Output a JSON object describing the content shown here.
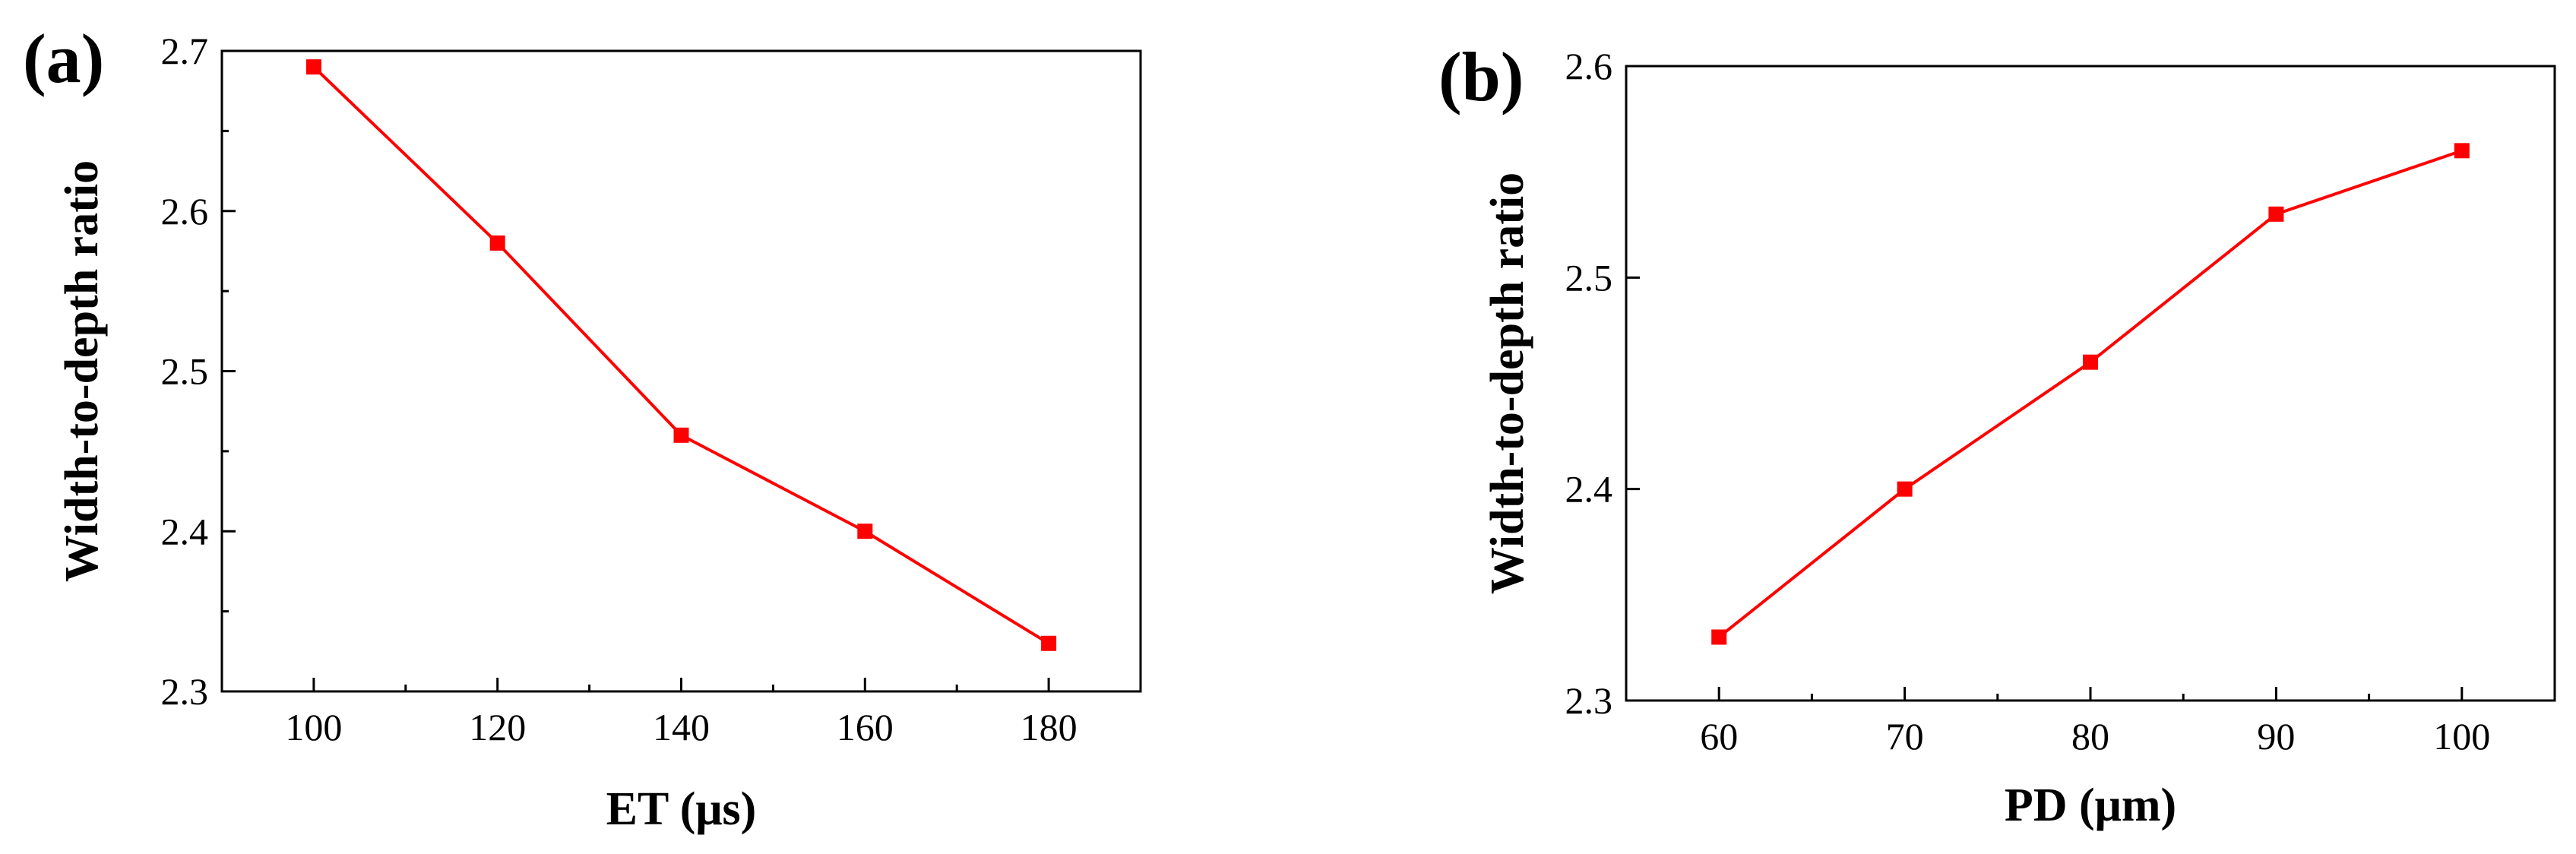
{
  "colors": {
    "series": "#ff0000",
    "axis": "#000000",
    "background": "#ffffff"
  },
  "chart_data": [
    {
      "type": "line",
      "panel_label": "(a)",
      "xlabel": "ET (μs)",
      "ylabel": "Width-to-depth ratio",
      "x": [
        100,
        120,
        140,
        160,
        180
      ],
      "series": [
        {
          "name": "Width-to-depth ratio",
          "marker": "square",
          "values": [
            2.69,
            2.58,
            2.46,
            2.4,
            2.33
          ]
        }
      ],
      "xlim": [
        90,
        190
      ],
      "ylim": [
        2.3,
        2.7
      ],
      "xticks": [
        100,
        120,
        140,
        160,
        180
      ],
      "xtick_labels": [
        "100",
        "120",
        "140",
        "160",
        "180"
      ],
      "yticks": [
        2.3,
        2.4,
        2.5,
        2.6,
        2.7
      ],
      "ytick_labels": [
        "2.3",
        "2.4",
        "2.5",
        "2.6",
        "2.7"
      ],
      "grid": false
    },
    {
      "type": "line",
      "panel_label": "(b)",
      "xlabel": "PD (μm)",
      "ylabel": "Width-to-depth ratio",
      "x": [
        60,
        70,
        80,
        90,
        100
      ],
      "series": [
        {
          "name": "Width-to-depth ratio",
          "marker": "square",
          "values": [
            2.33,
            2.4,
            2.46,
            2.53,
            2.56
          ]
        }
      ],
      "xlim": [
        55,
        105
      ],
      "ylim": [
        2.3,
        2.6
      ],
      "xticks": [
        60,
        70,
        80,
        90,
        100
      ],
      "xtick_labels": [
        "60",
        "70",
        "80",
        "90",
        "100"
      ],
      "yticks": [
        2.3,
        2.4,
        2.5,
        2.6
      ],
      "ytick_labels": [
        "2.3",
        "2.4",
        "2.5",
        "2.6"
      ],
      "grid": false
    }
  ]
}
